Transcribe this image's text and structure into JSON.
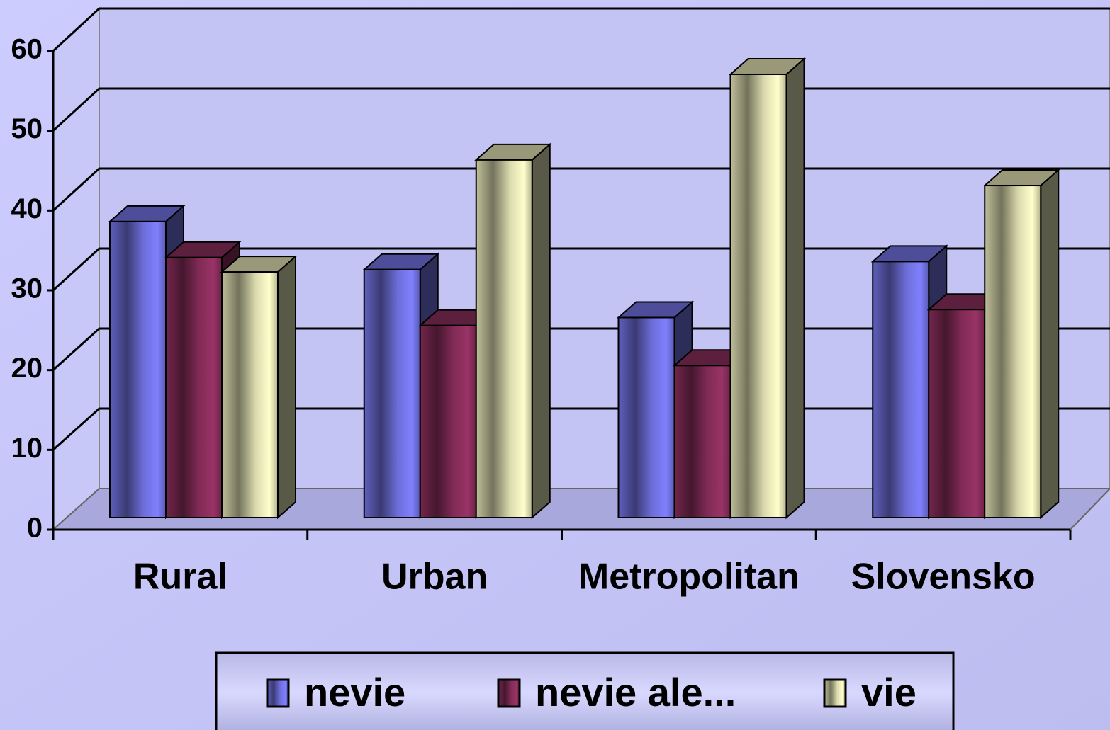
{
  "chart_data": {
    "type": "bar3d",
    "categories": [
      "Rural",
      "Urban",
      "Metropolitan",
      "Slovensko"
    ],
    "series": [
      {
        "name": "nevie",
        "color": "#8080ff",
        "values": [
          37,
          31,
          25,
          32
        ]
      },
      {
        "name": "nevie ale...",
        "color": "#993366",
        "values": [
          32.5,
          24,
          19,
          26
        ]
      },
      {
        "name": "vie",
        "color": "#ffffcc",
        "values": [
          30.7,
          44.7,
          55.4,
          41.5
        ]
      }
    ],
    "ylim": [
      0,
      60
    ],
    "yticks": [
      0,
      10,
      20,
      30,
      40,
      50,
      60
    ],
    "grid": true,
    "legend": "bottom"
  }
}
